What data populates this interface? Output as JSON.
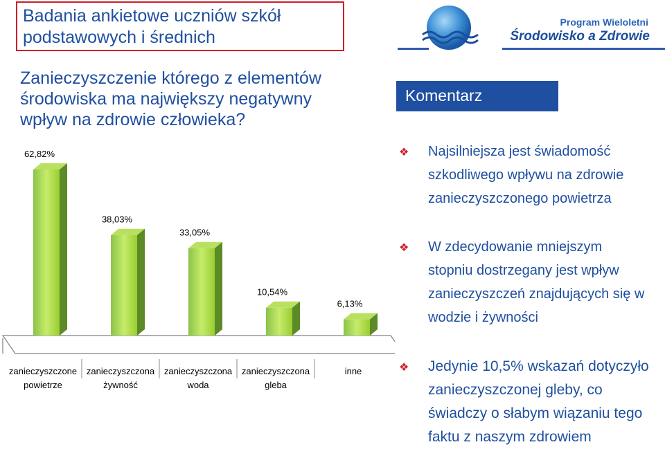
{
  "header": {
    "title_lines": [
      "Badania ankietowe uczniów szkół",
      "podstawowych i średnich"
    ],
    "logo": {
      "line1": "Program Wieloletni",
      "line2": "Środowisko a Zdrowie"
    }
  },
  "question_lines": [
    "Zanieczyszczenie którego z elementów",
    "środowiska ma największy negatywny",
    "wpływ na zdrowie człowieka?"
  ],
  "comment": {
    "heading": "Komentarz",
    "bullets": [
      {
        "lines": [
          "Najsilniejsza jest świadomość",
          "szkodliwego wpływu na zdrowie",
          "zanieczyszczonego powietrza"
        ]
      },
      {
        "lines": [
          "W zdecydowanie mniejszym",
          "stopniu dostrzegany jest wpływ",
          "zanieczyszczeń znajdujących się w",
          "wodzie i żywności"
        ]
      },
      {
        "lines": [
          "Jedynie 10,5% wskazań dotyczyło",
          "zanieczyszczonej gleby, co",
          "świadczy o słabym wiązaniu tego",
          "faktu z naszym zdrowiem"
        ]
      }
    ]
  },
  "colors": {
    "accent": "#1f4fa0",
    "title_border": "#cc1f2b",
    "bar": "#9acd32",
    "bullet": "#cc1f2b"
  },
  "chart_data": {
    "type": "bar",
    "categories": [
      [
        "zanieczyszczone",
        "powietrze"
      ],
      [
        "zanieczyszczona",
        "żywność"
      ],
      [
        "zanieczyszczona",
        "woda"
      ],
      [
        "zanieczyszczona",
        "gleba"
      ],
      [
        "inne"
      ]
    ],
    "values": [
      62.82,
      38.03,
      33.05,
      10.54,
      6.13
    ],
    "data_labels": [
      "62,82%",
      "38,03%",
      "33,05%",
      "10,54%",
      "6,13%"
    ],
    "ylim": [
      0,
      62.82
    ],
    "grid": false,
    "legend": "none"
  }
}
